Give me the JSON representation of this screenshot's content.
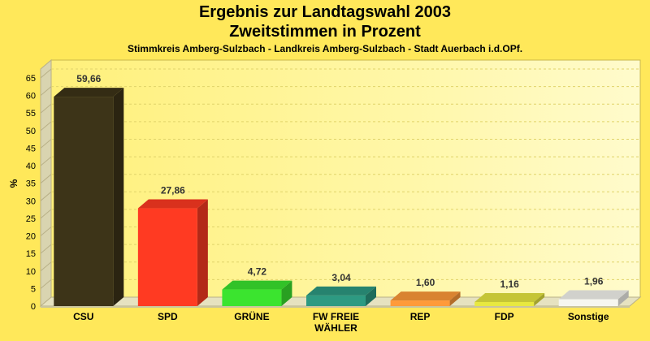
{
  "header": {
    "title": "Ergebnis zur Landtagswahl 2003",
    "subtitle": "Zweitstimmen in Prozent",
    "caption": "Stimmkreis Amberg-Sulzbach - Landkreis Amberg-Sulzbach - Stadt Auerbach i.d.OPf."
  },
  "chart_data": {
    "type": "bar",
    "title": "Ergebnis zur Landtagswahl 2003",
    "subtitle": "Zweitstimmen in Prozent",
    "ylabel": "%",
    "ylim": [
      0,
      65
    ],
    "yticks": [
      0,
      5,
      10,
      15,
      20,
      25,
      30,
      35,
      40,
      45,
      50,
      55,
      60,
      65
    ],
    "grid": true,
    "categories": [
      [
        "CSU"
      ],
      [
        "SPD"
      ],
      [
        "GRÜNE"
      ],
      [
        "FW FREIE",
        "WÄHLER"
      ],
      [
        "REP"
      ],
      [
        "FDP"
      ],
      [
        "Sonstige"
      ]
    ],
    "values": [
      59.66,
      27.86,
      4.72,
      3.04,
      1.6,
      1.16,
      1.96
    ],
    "value_labels": [
      "59,66",
      "27,86",
      "4,72",
      "3,04",
      "1,60",
      "1,16",
      "1,96"
    ],
    "colors": [
      "#3D3418",
      "#FF3A22",
      "#3BE42F",
      "#2D9A82",
      "#FF9A3A",
      "#E8E840",
      "#F6F6F0"
    ]
  }
}
